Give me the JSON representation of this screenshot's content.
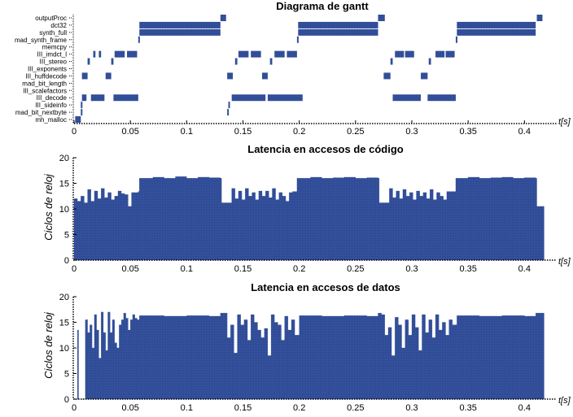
{
  "figure": {
    "background": "#ffffff",
    "bar_color": "#2e4a94"
  },
  "chart_data": [
    {
      "type": "gantt",
      "title": "Diagrama de gantt",
      "xlabel": "t[s]",
      "ylabel": "",
      "xlim": [
        0,
        0.42
      ],
      "xticks": [
        0,
        0.05,
        0.1,
        0.15,
        0.2,
        0.25,
        0.3,
        0.35,
        0.4
      ],
      "xtick_labels": [
        "0",
        "0.05",
        "0.1",
        "0.15",
        "0.2",
        "0.25",
        "0.3",
        "0.35",
        "0.4"
      ],
      "rows": [
        "outputProc",
        "dct32",
        "synth_full",
        "mad_synth_frame",
        "memcpy",
        "III_imdct_l",
        "III_stereo",
        "III_exponents",
        "III_huffdecode",
        "mad_bit_length",
        "III_scalefactors",
        "III_decode",
        "III_sideinfo",
        "mad_bit_nextbyte",
        "mh_malloc"
      ],
      "tasks": [
        {
          "row": "mh_malloc",
          "start": 0.001,
          "end": 0.006
        },
        {
          "row": "mad_bit_nextbyte",
          "start": 0.006,
          "end": 0.007
        },
        {
          "row": "III_sideinfo",
          "start": 0.006,
          "end": 0.007
        },
        {
          "row": "III_decode",
          "start": 0.007,
          "end": 0.011
        },
        {
          "row": "III_decode",
          "start": 0.015,
          "end": 0.027
        },
        {
          "row": "III_decode",
          "start": 0.035,
          "end": 0.057
        },
        {
          "row": "III_huffdecode",
          "start": 0.007,
          "end": 0.012
        },
        {
          "row": "III_huffdecode",
          "start": 0.028,
          "end": 0.033
        },
        {
          "row": "III_stereo",
          "start": 0.012,
          "end": 0.014
        },
        {
          "row": "III_stereo",
          "start": 0.033,
          "end": 0.035
        },
        {
          "row": "III_imdct_l",
          "start": 0.017,
          "end": 0.019
        },
        {
          "row": "III_imdct_l",
          "start": 0.022,
          "end": 0.024
        },
        {
          "row": "III_imdct_l",
          "start": 0.036,
          "end": 0.045
        },
        {
          "row": "III_imdct_l",
          "start": 0.047,
          "end": 0.056
        },
        {
          "row": "mad_synth_frame",
          "start": 0.057,
          "end": 0.058
        },
        {
          "row": "synth_full",
          "start": 0.058,
          "end": 0.13
        },
        {
          "row": "dct32",
          "start": 0.058,
          "end": 0.13
        },
        {
          "row": "outputProc",
          "start": 0.13,
          "end": 0.135
        },
        {
          "row": "mad_bit_nextbyte",
          "start": 0.136,
          "end": 0.137
        },
        {
          "row": "III_sideinfo",
          "start": 0.137,
          "end": 0.138
        },
        {
          "row": "III_decode",
          "start": 0.14,
          "end": 0.17
        },
        {
          "row": "III_decode",
          "start": 0.172,
          "end": 0.203
        },
        {
          "row": "III_huffdecode",
          "start": 0.136,
          "end": 0.141
        },
        {
          "row": "III_huffdecode",
          "start": 0.167,
          "end": 0.172
        },
        {
          "row": "III_stereo",
          "start": 0.143,
          "end": 0.145
        },
        {
          "row": "III_stereo",
          "start": 0.174,
          "end": 0.176
        },
        {
          "row": "III_imdct_l",
          "start": 0.146,
          "end": 0.155
        },
        {
          "row": "III_imdct_l",
          "start": 0.157,
          "end": 0.166
        },
        {
          "row": "III_imdct_l",
          "start": 0.178,
          "end": 0.187
        },
        {
          "row": "III_imdct_l",
          "start": 0.189,
          "end": 0.198
        },
        {
          "row": "mad_synth_frame",
          "start": 0.198,
          "end": 0.199
        },
        {
          "row": "synth_full",
          "start": 0.199,
          "end": 0.27
        },
        {
          "row": "dct32",
          "start": 0.199,
          "end": 0.27
        },
        {
          "row": "outputProc",
          "start": 0.27,
          "end": 0.276
        },
        {
          "row": "III_huffdecode",
          "start": 0.275,
          "end": 0.281
        },
        {
          "row": "III_stereo",
          "start": 0.281,
          "end": 0.283
        },
        {
          "row": "III_imdct_l",
          "start": 0.285,
          "end": 0.293
        },
        {
          "row": "III_imdct_l",
          "start": 0.294,
          "end": 0.302
        },
        {
          "row": "III_huffdecode",
          "start": 0.308,
          "end": 0.314
        },
        {
          "row": "III_stereo",
          "start": 0.315,
          "end": 0.317
        },
        {
          "row": "III_imdct_l",
          "start": 0.321,
          "end": 0.329
        },
        {
          "row": "III_imdct_l",
          "start": 0.33,
          "end": 0.338
        },
        {
          "row": "III_decode",
          "start": 0.283,
          "end": 0.308
        },
        {
          "row": "III_decode",
          "start": 0.314,
          "end": 0.339
        },
        {
          "row": "mad_synth_frame",
          "start": 0.339,
          "end": 0.34
        },
        {
          "row": "synth_full",
          "start": 0.34,
          "end": 0.41
        },
        {
          "row": "dct32",
          "start": 0.34,
          "end": 0.41
        },
        {
          "row": "outputProc",
          "start": 0.411,
          "end": 0.416
        }
      ]
    },
    {
      "type": "area",
      "title": "Latencia en accesos de código",
      "xlabel": "t[s]",
      "ylabel": "Ciclos de reloj",
      "xlim": [
        0,
        0.42
      ],
      "ylim": [
        0,
        20
      ],
      "xticks": [
        0,
        0.05,
        0.1,
        0.15,
        0.2,
        0.25,
        0.3,
        0.35,
        0.4
      ],
      "xtick_labels": [
        "0",
        "0.05",
        "0.1",
        "0.15",
        "0.2",
        "0.25",
        "0.3",
        "0.35",
        "0.4"
      ],
      "yticks": [
        0,
        5,
        10,
        15,
        20
      ],
      "ytick_labels": [
        "0",
        "5",
        "10",
        "15",
        "20"
      ],
      "x": [
        0,
        0.003,
        0.006,
        0.009,
        0.012,
        0.015,
        0.018,
        0.021,
        0.024,
        0.027,
        0.03,
        0.033,
        0.036,
        0.039,
        0.042,
        0.045,
        0.048,
        0.051,
        0.054,
        0.057,
        0.058,
        0.07,
        0.08,
        0.09,
        0.1,
        0.11,
        0.12,
        0.13,
        0.131,
        0.137,
        0.14,
        0.143,
        0.146,
        0.149,
        0.152,
        0.155,
        0.158,
        0.161,
        0.164,
        0.167,
        0.17,
        0.173,
        0.176,
        0.179,
        0.182,
        0.185,
        0.188,
        0.191,
        0.194,
        0.197,
        0.198,
        0.21,
        0.22,
        0.23,
        0.24,
        0.25,
        0.26,
        0.27,
        0.271,
        0.277,
        0.28,
        0.283,
        0.286,
        0.289,
        0.292,
        0.295,
        0.298,
        0.301,
        0.304,
        0.307,
        0.31,
        0.313,
        0.316,
        0.319,
        0.322,
        0.325,
        0.328,
        0.331,
        0.334,
        0.337,
        0.339,
        0.35,
        0.36,
        0.37,
        0.38,
        0.39,
        0.4,
        0.41,
        0.411,
        0.416
      ],
      "values": [
        12,
        11.5,
        12.5,
        11.2,
        13.8,
        11.5,
        13.5,
        12,
        14,
        12.2,
        13.2,
        11.8,
        12.5,
        13.5,
        13,
        12.8,
        10.5,
        13.2,
        13.2,
        13.4,
        16,
        16.2,
        16,
        16.3,
        16,
        16.2,
        16.1,
        16,
        11.2,
        11.2,
        14,
        12,
        13.5,
        11.8,
        14,
        12.5,
        13.2,
        11.8,
        13.5,
        12.5,
        13.5,
        12.2,
        14,
        11.8,
        13.2,
        12.5,
        11.5,
        13.2,
        13.4,
        13.4,
        16,
        16.2,
        16,
        16.1,
        16.2,
        16,
        16.1,
        16,
        11.2,
        11.2,
        14,
        12.2,
        13.5,
        12,
        13.8,
        12.5,
        13.2,
        11.8,
        13.5,
        12.5,
        13.2,
        12,
        13.8,
        11.8,
        13.2,
        12.5,
        11.8,
        13.4,
        13.4,
        13.4,
        16,
        16.2,
        16,
        16.1,
        16.2,
        16,
        16.1,
        16,
        10.5,
        10.5
      ]
    },
    {
      "type": "area",
      "title": "Latencia en accesos de datos",
      "xlabel": "t[s]",
      "ylabel": "Ciclos de reloj",
      "xlim": [
        0,
        0.42
      ],
      "ylim": [
        0,
        20
      ],
      "xticks": [
        0,
        0.05,
        0.1,
        0.15,
        0.2,
        0.25,
        0.3,
        0.35,
        0.4
      ],
      "xtick_labels": [
        "0",
        "0.05",
        "0.1",
        "0.15",
        "0.2",
        "0.25",
        "0.3",
        "0.35",
        "0.4"
      ],
      "yticks": [
        0,
        5,
        10,
        15,
        20
      ],
      "ytick_labels": [
        "0",
        "5",
        "10",
        "15",
        "20"
      ],
      "x": [
        0,
        0.002,
        0.003,
        0.004,
        0.006,
        0.008,
        0.01,
        0.012,
        0.014,
        0.016,
        0.018,
        0.02,
        0.022,
        0.024,
        0.026,
        0.028,
        0.03,
        0.032,
        0.034,
        0.036,
        0.038,
        0.04,
        0.042,
        0.044,
        0.046,
        0.048,
        0.05,
        0.052,
        0.054,
        0.056,
        0.058,
        0.08,
        0.1,
        0.12,
        0.13,
        0.133,
        0.136,
        0.139,
        0.142,
        0.145,
        0.148,
        0.151,
        0.154,
        0.157,
        0.16,
        0.163,
        0.166,
        0.169,
        0.172,
        0.175,
        0.178,
        0.181,
        0.184,
        0.187,
        0.19,
        0.193,
        0.196,
        0.2,
        0.22,
        0.24,
        0.26,
        0.27,
        0.273,
        0.276,
        0.279,
        0.282,
        0.285,
        0.288,
        0.291,
        0.294,
        0.297,
        0.3,
        0.303,
        0.306,
        0.309,
        0.312,
        0.315,
        0.318,
        0.321,
        0.324,
        0.327,
        0.33,
        0.333,
        0.336,
        0.34,
        0.36,
        0.38,
        0.4,
        0.41,
        0.416
      ],
      "values": [
        0,
        0,
        13.5,
        0,
        0,
        0,
        15.5,
        13,
        14.5,
        10,
        16.5,
        13.5,
        8,
        17,
        13,
        9.5,
        17,
        13,
        15.5,
        11,
        10,
        14.5,
        15.5,
        16.8,
        15.8,
        13.5,
        15.5,
        16.5,
        15.8,
        15.5,
        16.3,
        16.2,
        16.3,
        16.2,
        16.8,
        16.8,
        12,
        14.5,
        9,
        16.5,
        14.5,
        15.5,
        11.5,
        16.5,
        15,
        13.5,
        12,
        13.8,
        8.5,
        16.5,
        15,
        14.5,
        11.5,
        16.2,
        13.5,
        15.5,
        12.5,
        16.3,
        16.2,
        16.3,
        16.2,
        16.8,
        16.5,
        12.5,
        14,
        8.5,
        16,
        14.5,
        10,
        15.5,
        12.5,
        16.5,
        14,
        9.5,
        16.5,
        13,
        15.5,
        12,
        16.5,
        13.5,
        15,
        12.5,
        15.5,
        14.5,
        16.3,
        16.2,
        16.3,
        16.2,
        16.8,
        16.8
      ]
    }
  ]
}
